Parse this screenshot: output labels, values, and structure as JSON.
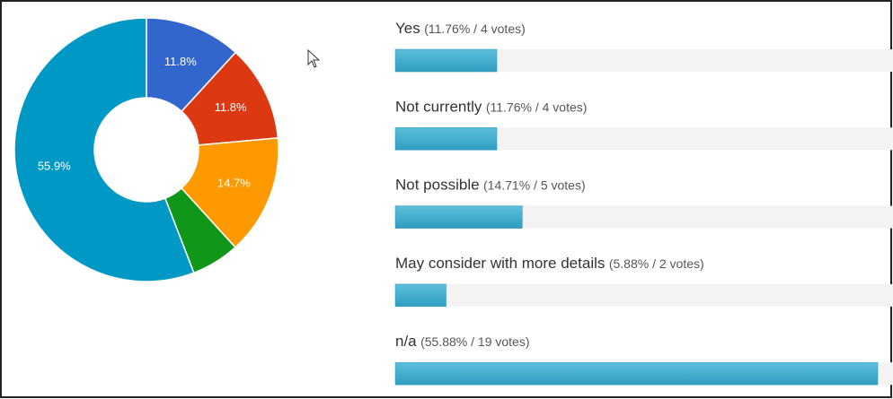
{
  "chart_data": [
    {
      "type": "pie",
      "values": [
        11.8,
        11.8,
        14.7,
        5.9,
        55.9
      ],
      "value_labels": [
        "11.8%",
        "11.8%",
        "14.7%",
        null,
        "55.9%"
      ],
      "colors": [
        "#3366cc",
        "#dc3912",
        "#ff9900",
        "#109618",
        "#0099c6"
      ],
      "donut": true
    },
    {
      "type": "bar",
      "orientation": "horizontal",
      "categories": [
        "Yes",
        "Not currently",
        "Not possible",
        "May consider with more details",
        "n/a"
      ],
      "values": [
        11.76,
        11.76,
        14.71,
        5.88,
        55.88
      ],
      "value_labels": [
        "(11.76% / 4 votes)",
        "(11.76% / 4 votes)",
        "(14.71% / 5 votes)",
        "(5.88% / 2 votes)",
        "(55.88% / 19 votes)"
      ],
      "xlim": [
        0,
        100
      ],
      "color": "#3aa8c8"
    }
  ]
}
